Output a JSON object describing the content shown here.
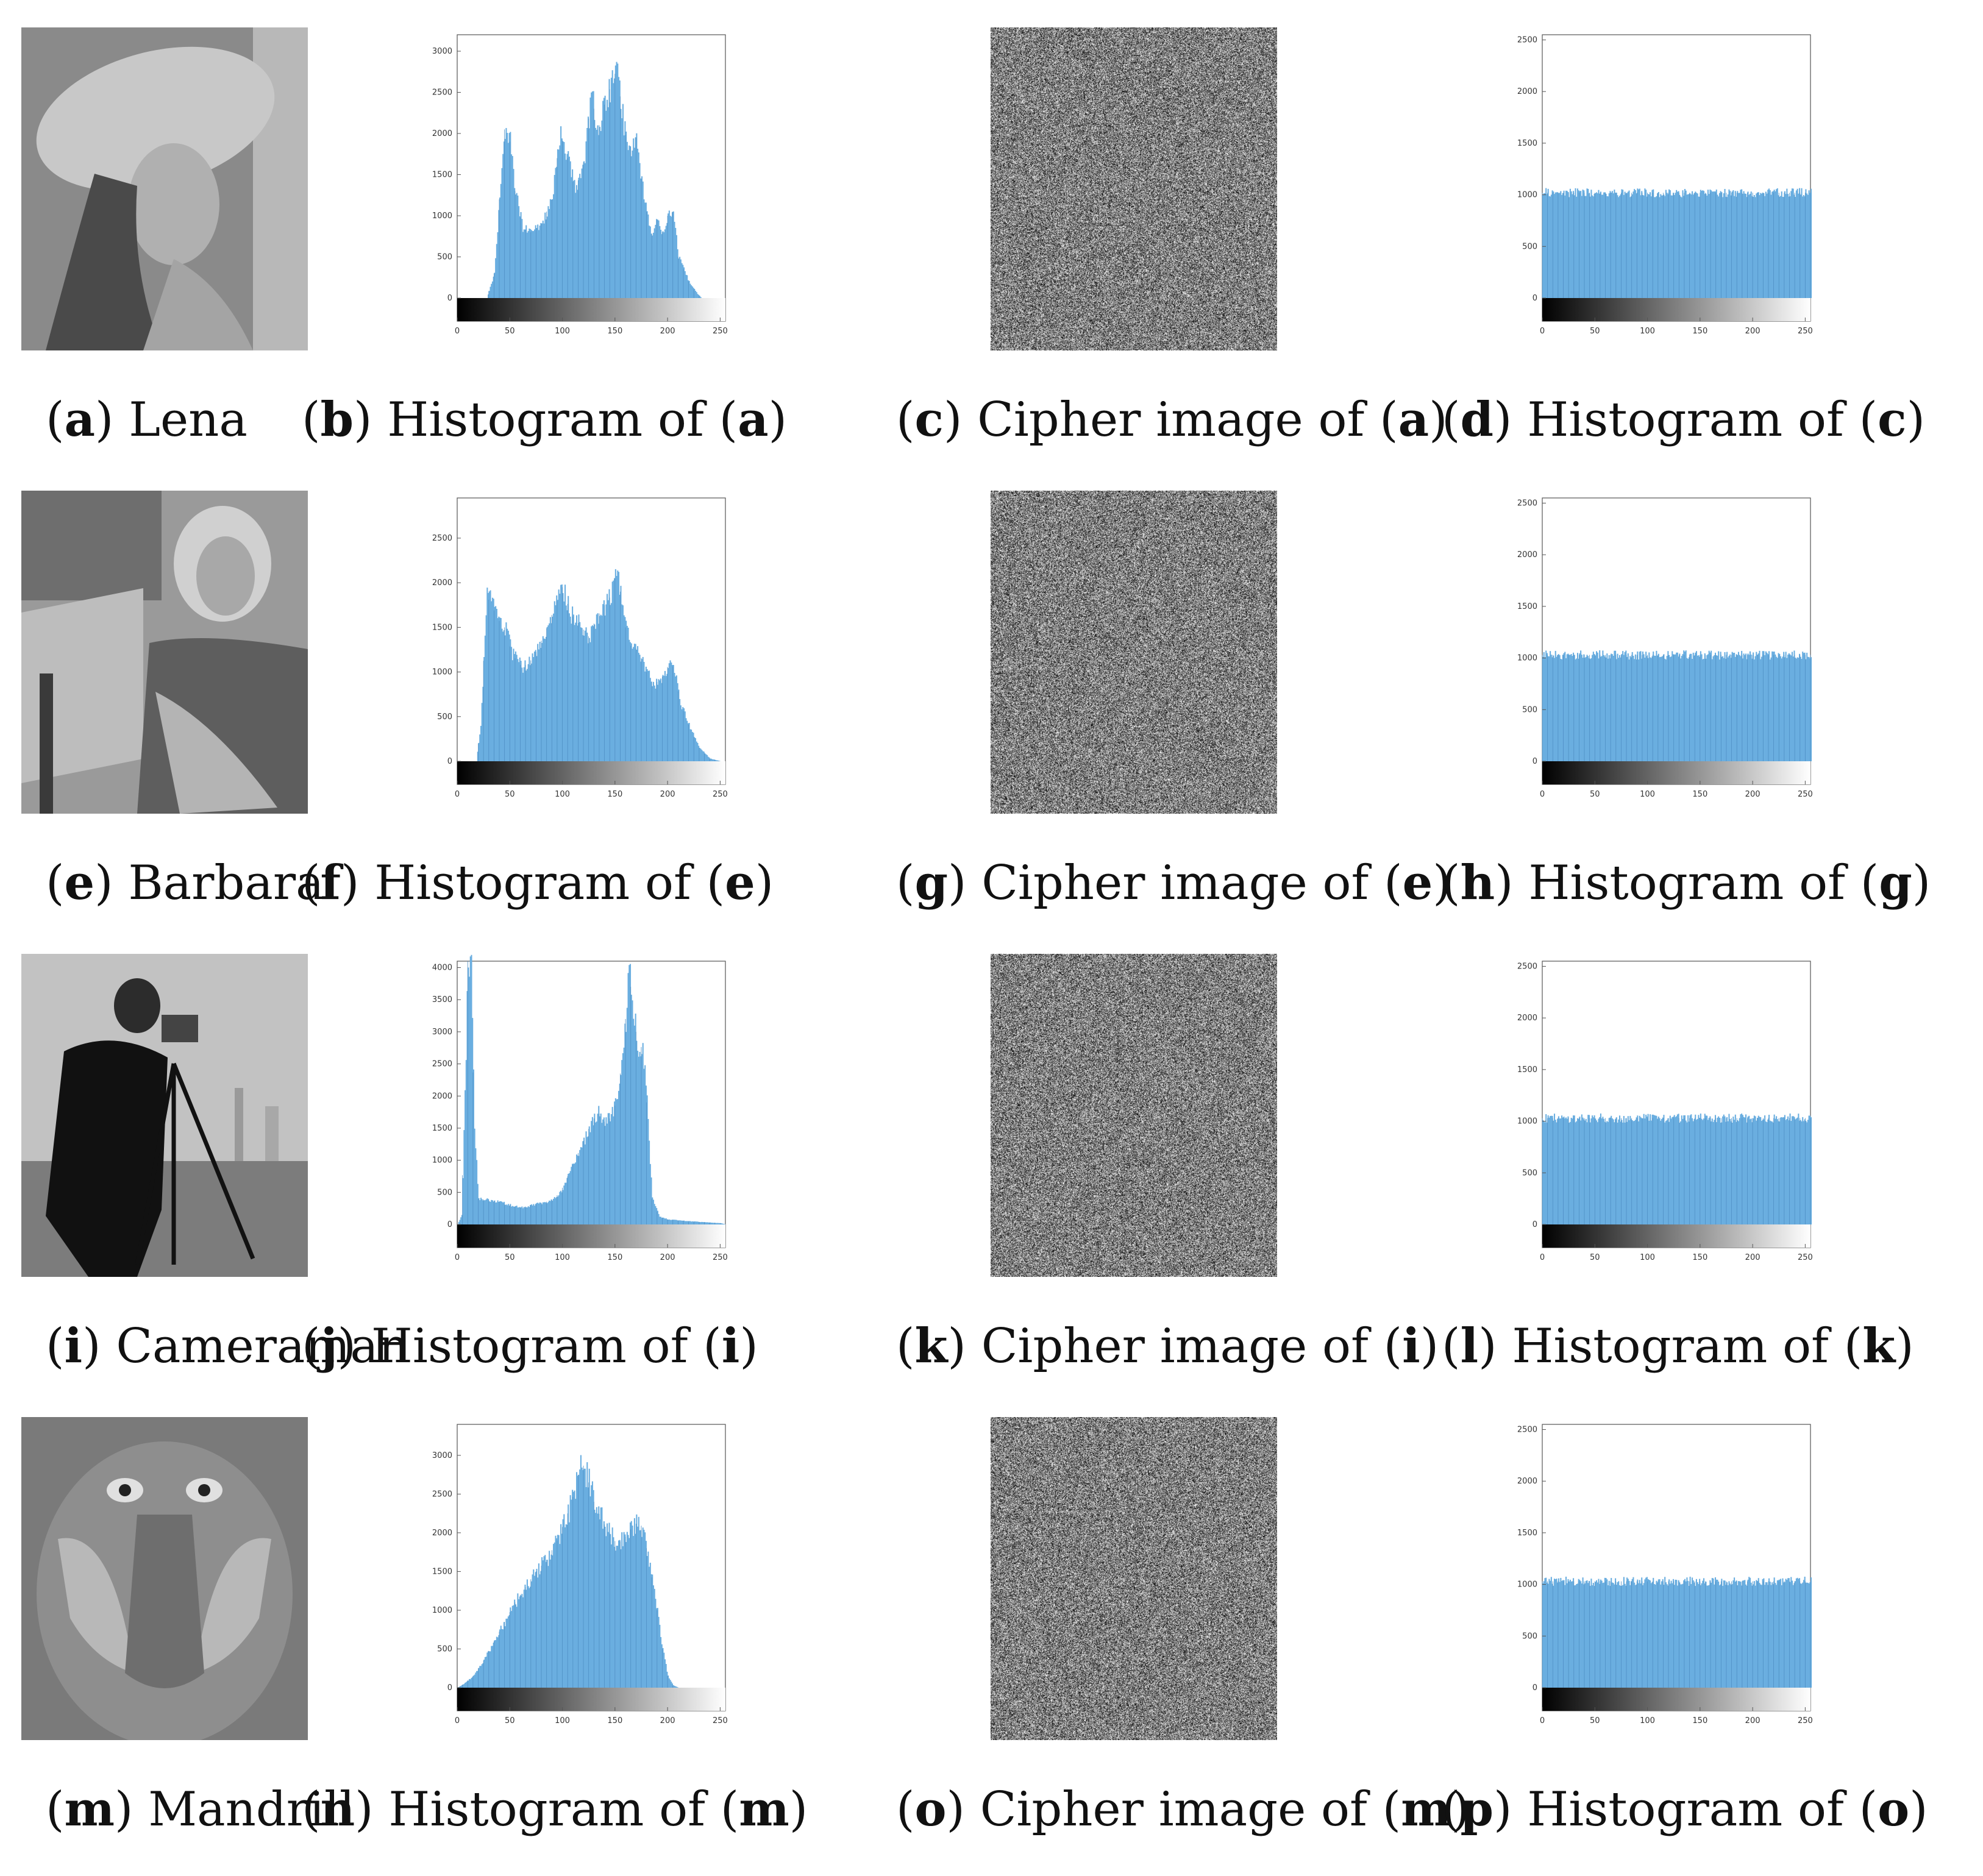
{
  "rows": [
    {
      "captions": [
        {
          "letter": "a",
          "text": "Lena"
        },
        {
          "letter": "b",
          "text": "Histogram of",
          "ref": "a"
        },
        {
          "letter": "c",
          "text": "Cipher image of",
          "ref": "a"
        },
        {
          "letter": "d",
          "text": "Histogram of",
          "ref": "c"
        }
      ]
    },
    {
      "captions": [
        {
          "letter": "e",
          "text": "Barbara"
        },
        {
          "letter": "f",
          "text": "Histogram of",
          "ref": "e"
        },
        {
          "letter": "g",
          "text": "Cipher image of",
          "ref": "e"
        },
        {
          "letter": "h",
          "text": "Histogram of",
          "ref": "g"
        }
      ]
    },
    {
      "captions": [
        {
          "letter": "i",
          "text": "Cameraman"
        },
        {
          "letter": "j",
          "text": "Histogram of",
          "ref": "i"
        },
        {
          "letter": "k",
          "text": "Cipher image of",
          "ref": "i"
        },
        {
          "letter": "l",
          "text": "Histogram of",
          "ref": "k"
        }
      ]
    },
    {
      "captions": [
        {
          "letter": "m",
          "text": "Mandrill"
        },
        {
          "letter": "n",
          "text": "Histogram of",
          "ref": "m"
        },
        {
          "letter": "o",
          "text": "Cipher image of",
          "ref": "m"
        },
        {
          "letter": "p",
          "text": "Histogram of",
          "ref": "o"
        }
      ]
    }
  ],
  "colors": {
    "bar": "#6aaee0",
    "bar_edge": "#4f8fc4",
    "axis": "#555555"
  },
  "chart_data": [
    {
      "type": "bar",
      "ref": "b",
      "x_ticks": [
        0,
        50,
        100,
        150,
        200,
        250
      ],
      "xlim": [
        0,
        255
      ],
      "y_ticks": [
        0,
        500,
        1000,
        1500,
        2000,
        2500,
        3000
      ],
      "ylim": [
        0,
        3200
      ],
      "profile": [
        [
          0,
          0
        ],
        [
          28,
          0
        ],
        [
          35,
          300
        ],
        [
          40,
          1200
        ],
        [
          45,
          2050
        ],
        [
          50,
          1900
        ],
        [
          55,
          1300
        ],
        [
          62,
          850
        ],
        [
          70,
          800
        ],
        [
          80,
          900
        ],
        [
          90,
          1200
        ],
        [
          98,
          2000
        ],
        [
          105,
          1700
        ],
        [
          112,
          1300
        ],
        [
          120,
          1650
        ],
        [
          128,
          2500
        ],
        [
          133,
          2000
        ],
        [
          140,
          2350
        ],
        [
          148,
          2650
        ],
        [
          152,
          2800
        ],
        [
          158,
          2100
        ],
        [
          163,
          1800
        ],
        [
          170,
          1950
        ],
        [
          176,
          1350
        ],
        [
          184,
          750
        ],
        [
          190,
          950
        ],
        [
          195,
          800
        ],
        [
          200,
          1000
        ],
        [
          205,
          1050
        ],
        [
          210,
          500
        ],
        [
          220,
          200
        ],
        [
          228,
          50
        ],
        [
          232,
          0
        ],
        [
          255,
          0
        ]
      ]
    },
    {
      "type": "bar",
      "ref": "d",
      "x_ticks": [
        0,
        50,
        100,
        150,
        200,
        250
      ],
      "xlim": [
        0,
        255
      ],
      "y_ticks": [
        0,
        500,
        1000,
        1500,
        2000,
        2500
      ],
      "ylim": [
        0,
        2550
      ],
      "uniform": 1020
    },
    {
      "type": "bar",
      "ref": "f",
      "x_ticks": [
        0,
        50,
        100,
        150,
        200,
        250
      ],
      "xlim": [
        0,
        255
      ],
      "y_ticks": [
        0,
        500,
        1000,
        1500,
        2000,
        2500
      ],
      "ylim": [
        0,
        2950
      ],
      "profile": [
        [
          0,
          0
        ],
        [
          18,
          0
        ],
        [
          22,
          400
        ],
        [
          28,
          1850
        ],
        [
          33,
          1750
        ],
        [
          38,
          1600
        ],
        [
          45,
          1500
        ],
        [
          52,
          1200
        ],
        [
          62,
          1050
        ],
        [
          72,
          1150
        ],
        [
          82,
          1400
        ],
        [
          92,
          1700
        ],
        [
          100,
          1950
        ],
        [
          108,
          1650
        ],
        [
          115,
          1550
        ],
        [
          125,
          1400
        ],
        [
          132,
          1600
        ],
        [
          140,
          1750
        ],
        [
          146,
          1850
        ],
        [
          150,
          2050
        ],
        [
          154,
          2000
        ],
        [
          158,
          1600
        ],
        [
          164,
          1300
        ],
        [
          172,
          1250
        ],
        [
          180,
          1000
        ],
        [
          187,
          850
        ],
        [
          195,
          950
        ],
        [
          202,
          1100
        ],
        [
          206,
          1050
        ],
        [
          212,
          650
        ],
        [
          222,
          350
        ],
        [
          230,
          150
        ],
        [
          240,
          30
        ],
        [
          250,
          0
        ],
        [
          255,
          0
        ]
      ]
    },
    {
      "type": "bar",
      "ref": "h",
      "x_ticks": [
        0,
        50,
        100,
        150,
        200,
        250
      ],
      "xlim": [
        0,
        255
      ],
      "y_ticks": [
        0,
        500,
        1000,
        1500,
        2000,
        2500
      ],
      "ylim": [
        0,
        2550
      ],
      "uniform": 1030
    },
    {
      "type": "bar",
      "ref": "j",
      "x_ticks": [
        0,
        50,
        100,
        150,
        200,
        250
      ],
      "xlim": [
        0,
        255
      ],
      "y_ticks": [
        0,
        500,
        1000,
        1500,
        2000,
        2500,
        3000,
        3500,
        4000
      ],
      "ylim": [
        0,
        4100
      ],
      "profile": [
        [
          0,
          0
        ],
        [
          4,
          150
        ],
        [
          7,
          2000
        ],
        [
          10,
          4100
        ],
        [
          13,
          4100
        ],
        [
          16,
          1500
        ],
        [
          20,
          400
        ],
        [
          30,
          380
        ],
        [
          40,
          350
        ],
        [
          50,
          300
        ],
        [
          60,
          260
        ],
        [
          70,
          300
        ],
        [
          80,
          330
        ],
        [
          90,
          380
        ],
        [
          98,
          500
        ],
        [
          105,
          750
        ],
        [
          112,
          1000
        ],
        [
          120,
          1300
        ],
        [
          128,
          1600
        ],
        [
          134,
          1750
        ],
        [
          140,
          1600
        ],
        [
          145,
          1650
        ],
        [
          150,
          1850
        ],
        [
          155,
          2350
        ],
        [
          160,
          3200
        ],
        [
          163,
          4100
        ],
        [
          167,
          3300
        ],
        [
          172,
          2800
        ],
        [
          176,
          2750
        ],
        [
          180,
          1900
        ],
        [
          185,
          400
        ],
        [
          192,
          120
        ],
        [
          200,
          80
        ],
        [
          220,
          50
        ],
        [
          250,
          20
        ],
        [
          255,
          0
        ]
      ]
    },
    {
      "type": "bar",
      "ref": "l",
      "x_ticks": [
        0,
        50,
        100,
        150,
        200,
        250
      ],
      "xlim": [
        0,
        255
      ],
      "y_ticks": [
        0,
        500,
        1000,
        1500,
        2000,
        2500
      ],
      "ylim": [
        0,
        2550
      ],
      "uniform": 1030
    },
    {
      "type": "bar",
      "ref": "n",
      "x_ticks": [
        0,
        50,
        100,
        150,
        200,
        250
      ],
      "xlim": [
        0,
        255
      ],
      "y_ticks": [
        0,
        500,
        1000,
        1500,
        2000,
        2500,
        3000
      ],
      "ylim": [
        0,
        3400
      ],
      "profile": [
        [
          0,
          0
        ],
        [
          5,
          40
        ],
        [
          15,
          150
        ],
        [
          25,
          350
        ],
        [
          35,
          600
        ],
        [
          45,
          850
        ],
        [
          55,
          1100
        ],
        [
          65,
          1300
        ],
        [
          75,
          1500
        ],
        [
          85,
          1650
        ],
        [
          95,
          1900
        ],
        [
          105,
          2250
        ],
        [
          112,
          2550
        ],
        [
          118,
          2950
        ],
        [
          124,
          2700
        ],
        [
          130,
          2400
        ],
        [
          138,
          2150
        ],
        [
          145,
          2000
        ],
        [
          152,
          1850
        ],
        [
          160,
          1950
        ],
        [
          168,
          2100
        ],
        [
          174,
          2150
        ],
        [
          180,
          1800
        ],
        [
          188,
          1200
        ],
        [
          195,
          500
        ],
        [
          200,
          150
        ],
        [
          205,
          30
        ],
        [
          210,
          0
        ],
        [
          255,
          0
        ]
      ]
    },
    {
      "type": "bar",
      "ref": "p",
      "x_ticks": [
        0,
        50,
        100,
        150,
        200,
        250
      ],
      "xlim": [
        0,
        255
      ],
      "y_ticks": [
        0,
        500,
        1000,
        1500,
        2000,
        2500
      ],
      "ylim": [
        0,
        2550
      ],
      "uniform": 1030
    }
  ]
}
